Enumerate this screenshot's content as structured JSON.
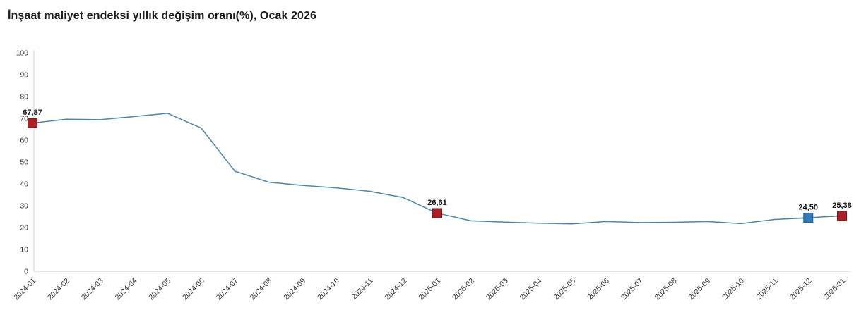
{
  "title": "İnşaat maliyet endeksi yıllık değişim oranı(%), Ocak 2026",
  "chart_data": {
    "type": "line",
    "title": "İnşaat maliyet endeksi yıllık değişim oranı(%), Ocak 2026",
    "xlabel": "",
    "ylabel": "",
    "ylim": [
      0,
      100
    ],
    "ytick_step": 10,
    "grid": false,
    "legend": false,
    "axis_color": "#cccccc",
    "line_color": "#4a86ad",
    "x": [
      "2024-01",
      "2024-02",
      "2024-03",
      "2024-04",
      "2024-05",
      "2024-06",
      "2024-07",
      "2024-08",
      "2024-09",
      "2024-10",
      "2024-11",
      "2024-12",
      "2025-01",
      "2025-02",
      "2025-03",
      "2025-04",
      "2025-05",
      "2025-06",
      "2025-07",
      "2025-08",
      "2025-09",
      "2025-10",
      "2025-11",
      "2025-12",
      "2026-01"
    ],
    "values": [
      67.87,
      69.6,
      69.4,
      70.8,
      72.3,
      65.6,
      45.8,
      40.8,
      39.3,
      38.2,
      36.6,
      33.7,
      26.61,
      23.1,
      22.5,
      22.0,
      21.7,
      22.8,
      22.3,
      22.4,
      22.8,
      21.8,
      23.7,
      24.5,
      25.38
    ],
    "markers": [
      {
        "index": 0,
        "value": 67.87,
        "label": "67,87",
        "color": "#ab2025",
        "border": "#7e1418"
      },
      {
        "index": 12,
        "value": 26.61,
        "label": "26,61",
        "color": "#ab2025",
        "border": "#7e1418"
      },
      {
        "index": 23,
        "value": 24.5,
        "label": "24,50",
        "color": "#2f7cbe",
        "border": "#1f5e96"
      },
      {
        "index": 24,
        "value": 25.38,
        "label": "25,38",
        "color": "#ab2025",
        "border": "#7e1418"
      }
    ]
  }
}
